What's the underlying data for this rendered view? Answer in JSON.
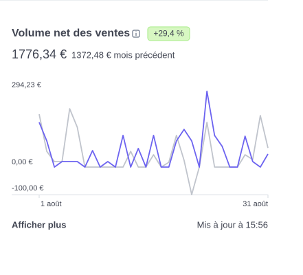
{
  "chart_data": {
    "type": "line",
    "title": "Volume net des ventes",
    "badge": "+29,4 %",
    "total": "1776,34 €",
    "previous": "1372,48 € mois précédent",
    "categories": [
      "1 août",
      null,
      null,
      null,
      null,
      null,
      null,
      null,
      null,
      null,
      null,
      null,
      null,
      null,
      null,
      null,
      null,
      null,
      null,
      null,
      null,
      null,
      null,
      null,
      null,
      null,
      null,
      null,
      null,
      null,
      "31 août"
    ],
    "series": [
      {
        "color": "#c0c4cc",
        "values": [
          202,
          60,
          21,
          21,
          223,
          152,
          0,
          0,
          0,
          0,
          0,
          0,
          60,
          0,
          0,
          47,
          0,
          18,
          121,
          26,
          -105,
          0,
          171,
          0,
          0,
          0,
          0,
          47,
          29,
          197,
          73
        ]
      },
      {
        "color": "#6c63f0",
        "values": [
          171,
          100,
          0,
          21,
          21,
          21,
          0,
          63,
          0,
          21,
          0,
          121,
          0,
          71,
          0,
          121,
          0,
          0,
          100,
          144,
          100,
          0,
          290,
          121,
          79,
          0,
          0,
          118,
          21,
          0,
          50
        ]
      }
    ],
    "ylim": [
      -105,
      294.23
    ],
    "yticks": [
      {
        "value": 294.23,
        "label": "294,23 €"
      },
      {
        "value": 0,
        "label": "0,00 €"
      },
      {
        "value": -100,
        "label": "-100,00 €"
      }
    ],
    "grid": false
  },
  "footer": {
    "link": "Afficher plus",
    "updated": "Mis à jour à 15:56"
  }
}
